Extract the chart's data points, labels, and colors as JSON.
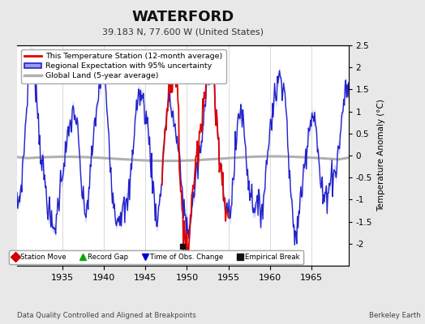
{
  "title": "WATERFORD",
  "subtitle": "39.183 N, 77.600 W (United States)",
  "xlabel_left": "Data Quality Controlled and Aligned at Breakpoints",
  "xlabel_right": "Berkeley Earth",
  "ylabel": "Temperature Anomaly (°C)",
  "xlim": [
    1929.5,
    1969.5
  ],
  "ylim": [
    -2.5,
    2.5
  ],
  "yticks": [
    -2.0,
    -1.5,
    -1.0,
    -0.5,
    0.0,
    0.5,
    1.0,
    1.5,
    2.0,
    2.5
  ],
  "ytick_labels": [
    "-2",
    "-1.5",
    "-1",
    "-0.5",
    "0",
    "0.5",
    "1",
    "1.5",
    "2",
    "2.5"
  ],
  "xticks": [
    1935,
    1940,
    1945,
    1950,
    1955,
    1960,
    1965
  ],
  "background_color": "#e8e8e8",
  "plot_background": "#ffffff",
  "grid_color": "#cccccc",
  "empirical_break_x": 1949.5,
  "empirical_break_y": -2.05,
  "red_start": 1947.0,
  "red_end": 1955.0
}
